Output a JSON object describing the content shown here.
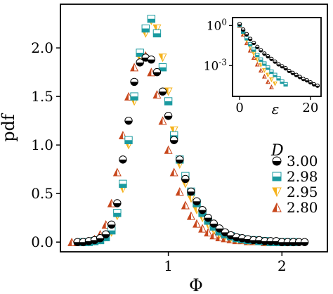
{
  "chart_data": {
    "type": "scatter",
    "xlabel": "Φ",
    "ylabel": "pdf",
    "xlim": [
      0.05,
      2.4
    ],
    "ylim": [
      -0.1,
      2.45
    ],
    "xticks": [
      1,
      2
    ],
    "xtick_labels": [
      "1",
      "2"
    ],
    "yticks": [
      0.0,
      0.5,
      1.0,
      1.5,
      2.0
    ],
    "ytick_labels": [
      "0.0",
      "0.5",
      "1.0",
      "1.5",
      "2.0"
    ],
    "grid": false,
    "legend": {
      "title": "D",
      "placement": "right",
      "labels": [
        "3.00",
        "2.98",
        "2.95",
        "2.80"
      ]
    },
    "series": [
      {
        "name": "3.00",
        "marker": "circle-half",
        "color": "#000000",
        "x": [
          0.2,
          0.25,
          0.3,
          0.35,
          0.4,
          0.45,
          0.5,
          0.55,
          0.6,
          0.65,
          0.7,
          0.75,
          0.8,
          0.85,
          0.9,
          0.95,
          1.0,
          1.05,
          1.1,
          1.15,
          1.2,
          1.25,
          1.3,
          1.35,
          1.4,
          1.45,
          1.5,
          1.55,
          1.6,
          1.65,
          1.7,
          1.75,
          1.8,
          1.85,
          1.9,
          1.95,
          2.0,
          2.05,
          2.1,
          2.15,
          2.2
        ],
        "y": [
          0.0,
          0.0,
          0.01,
          0.02,
          0.04,
          0.08,
          0.18,
          0.4,
          0.85,
          1.25,
          1.65,
          1.85,
          1.9,
          1.88,
          1.75,
          1.55,
          1.3,
          1.05,
          0.85,
          0.65,
          0.52,
          0.42,
          0.33,
          0.25,
          0.19,
          0.14,
          0.1,
          0.07,
          0.05,
          0.04,
          0.03,
          0.02,
          0.02,
          0.01,
          0.01,
          0.01,
          0.0,
          0.0,
          0.0,
          0.0,
          0.0
        ]
      },
      {
        "name": "2.98",
        "marker": "square-half",
        "color": "#1a9aa0",
        "x": [
          0.25,
          0.3,
          0.35,
          0.4,
          0.45,
          0.5,
          0.55,
          0.6,
          0.65,
          0.7,
          0.75,
          0.8,
          0.85,
          0.9,
          0.95,
          1.0,
          1.05,
          1.1,
          1.15,
          1.2,
          1.25,
          1.3,
          1.35,
          1.4,
          1.45,
          1.5,
          1.55,
          1.6,
          1.65,
          1.7,
          1.75,
          1.8,
          1.85,
          1.9,
          1.95,
          2.0,
          2.05,
          2.1
        ],
        "y": [
          0.0,
          0.0,
          0.01,
          0.02,
          0.05,
          0.12,
          0.3,
          0.6,
          1.05,
          1.5,
          1.95,
          2.2,
          2.3,
          2.15,
          1.8,
          1.45,
          1.1,
          0.85,
          0.68,
          0.52,
          0.4,
          0.3,
          0.22,
          0.16,
          0.11,
          0.08,
          0.06,
          0.04,
          0.03,
          0.02,
          0.02,
          0.01,
          0.01,
          0.0,
          0.0,
          0.0,
          0.0,
          0.0
        ]
      },
      {
        "name": "2.95",
        "marker": "triangle-down-half",
        "color": "#f5b21b",
        "x": [
          0.25,
          0.3,
          0.35,
          0.4,
          0.45,
          0.5,
          0.55,
          0.6,
          0.65,
          0.7,
          0.75,
          0.8,
          0.85,
          0.9,
          0.95,
          1.0,
          1.05,
          1.1,
          1.15,
          1.2,
          1.25,
          1.3,
          1.35,
          1.4,
          1.45,
          1.5,
          1.55,
          1.6,
          1.65,
          1.7,
          1.75,
          1.8,
          1.85,
          1.9,
          1.95,
          2.0,
          2.05,
          2.1
        ],
        "y": [
          0.0,
          0.0,
          0.01,
          0.02,
          0.05,
          0.1,
          0.27,
          0.55,
          1.0,
          1.45,
          1.9,
          2.15,
          2.28,
          2.2,
          1.9,
          1.55,
          1.15,
          0.8,
          0.6,
          0.45,
          0.33,
          0.25,
          0.18,
          0.12,
          0.08,
          0.06,
          0.04,
          0.03,
          0.02,
          0.01,
          0.01,
          0.01,
          0.0,
          0.0,
          0.0,
          0.0,
          0.0,
          0.0
        ]
      },
      {
        "name": "2.80",
        "marker": "triangle-up-half",
        "color": "#c8471c",
        "x": [
          0.15,
          0.2,
          0.25,
          0.3,
          0.35,
          0.4,
          0.45,
          0.5,
          0.55,
          0.6,
          0.65,
          0.7,
          0.75,
          0.8,
          0.85,
          0.9,
          0.95,
          1.0,
          1.05,
          1.1,
          1.15,
          1.2,
          1.25,
          1.3,
          1.35,
          1.4,
          1.45,
          1.5,
          1.55,
          1.6,
          1.65,
          1.7,
          1.75,
          1.8,
          1.85,
          1.9,
          1.95,
          2.0,
          2.05,
          2.1
        ],
        "y": [
          0.0,
          0.0,
          0.0,
          0.01,
          0.03,
          0.08,
          0.18,
          0.4,
          0.72,
          1.1,
          1.5,
          1.8,
          1.95,
          1.92,
          1.75,
          1.52,
          1.25,
          0.95,
          0.72,
          0.52,
          0.38,
          0.27,
          0.19,
          0.14,
          0.1,
          0.07,
          0.05,
          0.04,
          0.03,
          0.02,
          0.02,
          0.01,
          0.01,
          0.01,
          0.0,
          0.0,
          0.0,
          0.0,
          0.0,
          0.0
        ]
      }
    ],
    "inset": {
      "type": "scatter",
      "xlabel": "ε",
      "ylabel": "",
      "yscale": "log",
      "xlim": [
        -2,
        23
      ],
      "ylim_exp": [
        -5.3,
        0.6
      ],
      "xticks": [
        0,
        20
      ],
      "xtick_labels": [
        "0",
        "20"
      ],
      "yticks_exp": [
        0,
        -3
      ],
      "ytick_labels": [
        "10^0",
        "10^-3"
      ],
      "series": [
        {
          "name": "3.00",
          "x": [
            0,
            1,
            2,
            3,
            4,
            5,
            6,
            7,
            8,
            9,
            10,
            11,
            12,
            13,
            14,
            15,
            16,
            17,
            18,
            19,
            20,
            21,
            22
          ],
          "y_log10": [
            0.1,
            -0.3,
            -0.65,
            -1.0,
            -1.3,
            -1.6,
            -1.85,
            -2.1,
            -2.3,
            -2.5,
            -2.7,
            -2.9,
            -3.05,
            -3.2,
            -3.4,
            -3.55,
            -3.7,
            -3.85,
            -4.0,
            -4.1,
            -4.25,
            -4.4,
            -4.5
          ]
        },
        {
          "name": "2.98",
          "x": [
            0,
            1,
            2,
            3,
            4,
            5,
            6,
            7,
            8,
            9,
            10,
            11,
            12,
            13
          ],
          "y_log10": [
            0.05,
            -0.45,
            -0.95,
            -1.4,
            -1.8,
            -2.2,
            -2.55,
            -2.85,
            -3.15,
            -3.45,
            -3.7,
            -3.95,
            -4.2,
            -4.4
          ]
        },
        {
          "name": "2.95",
          "x": [
            0,
            1,
            2,
            3,
            4,
            5,
            6,
            7,
            8,
            9,
            10
          ],
          "y_log10": [
            0.05,
            -0.55,
            -1.1,
            -1.6,
            -2.1,
            -2.55,
            -2.95,
            -3.35,
            -3.7,
            -4.05,
            -4.35
          ]
        },
        {
          "name": "2.80",
          "x": [
            0,
            1,
            2,
            3,
            4,
            5,
            6,
            7,
            8,
            9
          ],
          "y_log10": [
            0.0,
            -0.65,
            -1.3,
            -1.85,
            -2.4,
            -2.9,
            -3.35,
            -3.8,
            -4.2,
            -4.6
          ]
        }
      ]
    }
  }
}
